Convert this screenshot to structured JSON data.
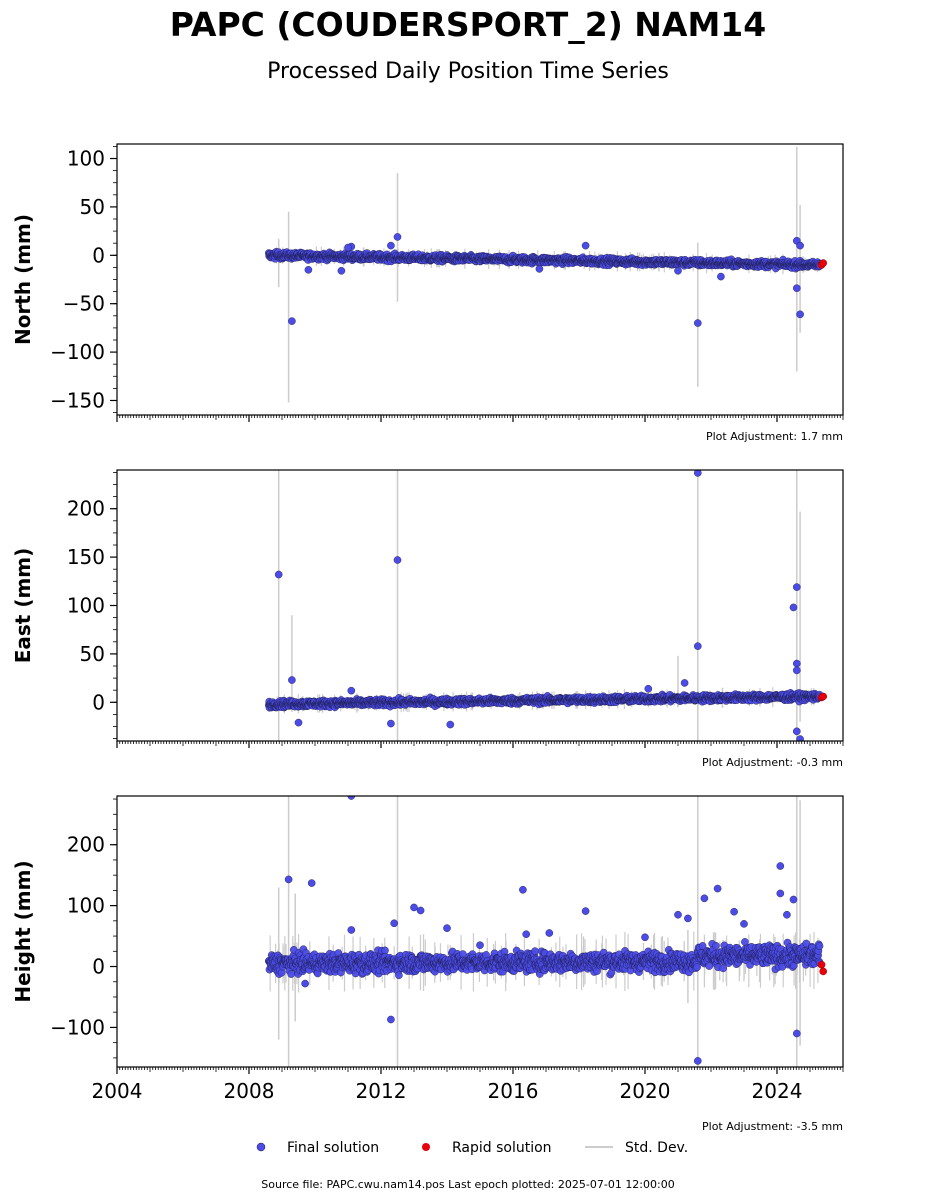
{
  "title": "PAPC (COUDERSPORT_2) NAM14",
  "subtitle": "Processed Daily Position Time Series",
  "colors": {
    "final": "#4b4be8",
    "final_edge": "#1a1a40",
    "rapid": "#e8000b",
    "stddev": "#cccccc"
  },
  "legend": {
    "final": "Final solution",
    "rapid": "Rapid solution",
    "stddev": "Std. Dev."
  },
  "footer": "Source file: PAPC.cwu.nam14.pos  Last epoch plotted: 2025-07-01 12:00:00",
  "chart_data": [
    {
      "type": "scatter",
      "ylabel": "North (mm)",
      "adjustment": "Plot Adjustment: 1.7 mm",
      "xlim": [
        2004.0,
        2026.0
      ],
      "ylim": [
        -165,
        115
      ],
      "yticks": [
        "100",
        "50",
        "0",
        "−50",
        "−100",
        "−150"
      ],
      "ytick_values": [
        100,
        50,
        0,
        -50,
        -100,
        -150
      ],
      "trend": [
        [
          2008.6,
          0
        ],
        [
          2025.3,
          -10
        ]
      ],
      "scatter_amp": 3,
      "outliers": [
        [
          2009.3,
          -68
        ],
        [
          2021.6,
          -70
        ],
        [
          2012.5,
          19
        ],
        [
          2024.7,
          -61
        ],
        [
          2024.6,
          -34
        ],
        [
          2024.6,
          15
        ],
        [
          2024.7,
          10
        ],
        [
          2018.2,
          10
        ],
        [
          2011.1,
          9
        ],
        [
          2012.3,
          10
        ],
        [
          2010.8,
          -16
        ],
        [
          2009.8,
          -15
        ],
        [
          2016.8,
          -14
        ],
        [
          2022.3,
          -22
        ],
        [
          2021.0,
          -16
        ],
        [
          2011.0,
          8
        ]
      ],
      "stddev_bars": [
        [
          2009.2,
          -152,
          45
        ],
        [
          2012.5,
          -48,
          85
        ],
        [
          2021.6,
          -136,
          13
        ],
        [
          2024.6,
          -120,
          112
        ],
        [
          2008.9,
          -33,
          17
        ],
        [
          2024.7,
          -80,
          52
        ]
      ],
      "rapid_points": [
        [
          2025.35,
          -10
        ],
        [
          2025.4,
          -8
        ]
      ]
    },
    {
      "type": "scatter",
      "ylabel": "East (mm)",
      "adjustment": "Plot Adjustment: -0.3 mm",
      "xlim": [
        2004.0,
        2026.0
      ],
      "ylim": [
        -40,
        240
      ],
      "yticks": [
        "200",
        "150",
        "100",
        "50",
        "0"
      ],
      "ytick_values": [
        200,
        150,
        100,
        50,
        0
      ],
      "trend": [
        [
          2008.6,
          -2
        ],
        [
          2025.3,
          6
        ]
      ],
      "scatter_amp": 3,
      "outliers": [
        [
          2008.9,
          132
        ],
        [
          2012.5,
          147
        ],
        [
          2021.6,
          237
        ],
        [
          2021.6,
          58
        ],
        [
          2024.6,
          119
        ],
        [
          2024.5,
          98
        ],
        [
          2024.6,
          40
        ],
        [
          2024.6,
          33
        ],
        [
          2024.6,
          -30
        ],
        [
          2024.7,
          -38
        ],
        [
          2009.3,
          23
        ],
        [
          2012.3,
          -22
        ],
        [
          2009.5,
          -21
        ],
        [
          2014.1,
          -23
        ],
        [
          2021.2,
          20
        ],
        [
          2020.1,
          14
        ],
        [
          2011.1,
          12
        ]
      ],
      "stddev_bars": [
        [
          2008.9,
          -40,
          240
        ],
        [
          2012.5,
          -40,
          240
        ],
        [
          2021.6,
          -40,
          240
        ],
        [
          2024.6,
          -40,
          240
        ],
        [
          2009.3,
          -10,
          90
        ],
        [
          2024.7,
          -20,
          197
        ],
        [
          2021.0,
          -5,
          48
        ]
      ],
      "rapid_points": [
        [
          2025.35,
          5
        ],
        [
          2025.4,
          6
        ]
      ]
    },
    {
      "type": "scatter",
      "ylabel": "Height (mm)",
      "adjustment": "Plot Adjustment: -3.5 mm",
      "xlim": [
        2004.0,
        2026.0
      ],
      "ylim": [
        -165,
        280
      ],
      "yticks": [
        "200",
        "100",
        "0",
        "−100"
      ],
      "ytick_values": [
        200,
        100,
        0,
        -100
      ],
      "trend": [
        [
          2008.6,
          5
        ],
        [
          2025.3,
          10
        ]
      ],
      "scatter_amp": 14,
      "outliers": [
        [
          2011.1,
          280
        ],
        [
          2009.2,
          143
        ],
        [
          2009.9,
          137
        ],
        [
          2016.3,
          126
        ],
        [
          2022.2,
          128
        ],
        [
          2024.1,
          165
        ],
        [
          2024.1,
          120
        ],
        [
          2012.3,
          -87
        ],
        [
          2021.6,
          -155
        ],
        [
          2024.6,
          -110
        ],
        [
          2013.0,
          97
        ],
        [
          2013.2,
          92
        ],
        [
          2018.2,
          91
        ],
        [
          2022.7,
          90
        ],
        [
          2021.0,
          85
        ],
        [
          2021.3,
          79
        ],
        [
          2014.0,
          63
        ],
        [
          2016.4,
          53
        ],
        [
          2017.1,
          55
        ],
        [
          2020.0,
          48
        ],
        [
          2024.5,
          110
        ],
        [
          2023.0,
          70
        ],
        [
          2012.4,
          71
        ],
        [
          2011.1,
          60
        ],
        [
          2021.8,
          112
        ],
        [
          2015.0,
          35
        ],
        [
          2024.3,
          85
        ],
        [
          2009.7,
          -28
        ]
      ],
      "stddev_bars": [
        [
          2008.9,
          -120,
          130
        ],
        [
          2009.2,
          -165,
          280
        ],
        [
          2012.5,
          -165,
          280
        ],
        [
          2021.6,
          -165,
          280
        ],
        [
          2024.6,
          -165,
          280
        ],
        [
          2009.4,
          -90,
          120
        ],
        [
          2024.7,
          -130,
          273
        ],
        [
          2021.3,
          -60,
          60
        ]
      ],
      "rapid_points": [
        [
          2025.35,
          3
        ],
        [
          2025.4,
          -8
        ]
      ]
    }
  ],
  "x_major_ticks": [
    "2004",
    "2008",
    "2012",
    "2016",
    "2020",
    "2024"
  ],
  "x_major_values": [
    2004,
    2008,
    2012,
    2016,
    2020,
    2024
  ]
}
